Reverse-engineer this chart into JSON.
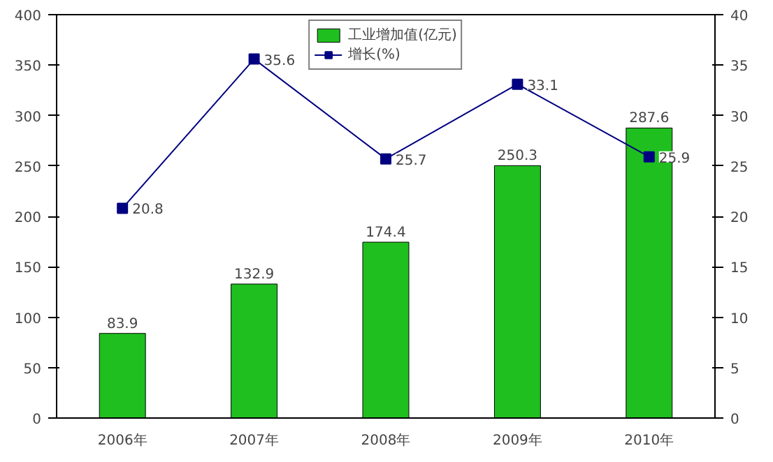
{
  "chart_data": {
    "type": "bar",
    "categories": [
      "2006年",
      "2007年",
      "2008年",
      "2009年",
      "2010年"
    ],
    "series": [
      {
        "name": "工业增加值(亿元)",
        "color": "#1fbf1f",
        "values": [
          83.9,
          132.9,
          174.4,
          250.3,
          287.6
        ]
      },
      {
        "name": "增长(%)",
        "type": "line",
        "axis": "y2",
        "color": "#000080",
        "marker": "square",
        "values": [
          20.8,
          35.6,
          25.7,
          33.1,
          25.9
        ]
      }
    ],
    "ylim": [
      0,
      400
    ],
    "yticks": [
      0,
      50,
      100,
      150,
      200,
      250,
      300,
      350,
      400
    ],
    "y2lim": [
      0,
      40
    ],
    "y2ticks": [
      0,
      5,
      10,
      15,
      20,
      25,
      30,
      35,
      40
    ],
    "data_labels": true,
    "legend": "top",
    "grid": false
  }
}
